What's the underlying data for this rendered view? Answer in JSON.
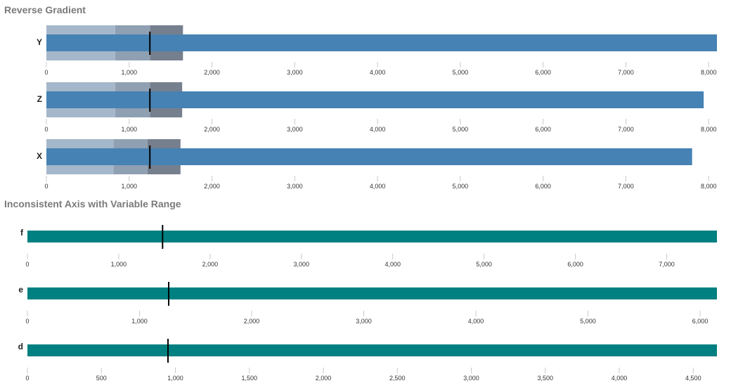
{
  "sections": [
    {
      "title": "Reverse Gradient"
    },
    {
      "title": "Inconsistent Axis with Variable Range"
    }
  ],
  "colors": {
    "blue_bar": "#4682b4",
    "teal_bar": "#008080",
    "range_light": "#a5b7ca",
    "range_mid": "#8fa0b2",
    "range_dark": "#757f8e",
    "marker": "#000000",
    "title": "#7a7a7a"
  },
  "chart_data": [
    {
      "type": "bullet",
      "title": "Reverse Gradient",
      "axis": {
        "min": 0,
        "max": 8100,
        "ticks": [
          0,
          1000,
          2000,
          3000,
          4000,
          5000,
          6000,
          7000,
          8000
        ],
        "tick_labels": [
          "0",
          "1,000",
          "2,000",
          "3,000",
          "4,000",
          "5,000",
          "6,000",
          "7,000",
          "8,000"
        ]
      },
      "items": [
        {
          "label": "Y",
          "value": 8100,
          "marker": 1250,
          "ranges": [
            830,
            1250,
            1650
          ]
        },
        {
          "label": "Z",
          "value": 7940,
          "marker": 1250,
          "ranges": [
            830,
            1250,
            1640
          ]
        },
        {
          "label": "X",
          "value": 7800,
          "marker": 1250,
          "ranges": [
            810,
            1220,
            1620
          ]
        }
      ]
    },
    {
      "type": "bullet",
      "title": "Inconsistent Axis with Variable Range",
      "items": [
        {
          "label": "f",
          "value": 7550,
          "marker": 1480,
          "axis": {
            "min": 0,
            "max": 7550,
            "ticks": [
              0,
              1000,
              2000,
              3000,
              4000,
              5000,
              6000,
              7000
            ],
            "tick_labels": [
              "0",
              "1,000",
              "2,000",
              "3,000",
              "4,000",
              "5,000",
              "6,000",
              "7,000"
            ]
          }
        },
        {
          "label": "e",
          "value": 6150,
          "marker": 1260,
          "axis": {
            "min": 0,
            "max": 6150,
            "ticks": [
              0,
              1000,
              2000,
              3000,
              4000,
              5000,
              6000
            ],
            "tick_labels": [
              "0",
              "1,000",
              "2,000",
              "3,000",
              "4,000",
              "5,000",
              "6,000"
            ]
          }
        },
        {
          "label": "d",
          "value": 4660,
          "marker": 950,
          "axis": {
            "min": 0,
            "max": 4660,
            "ticks": [
              0,
              500,
              1000,
              1500,
              2000,
              2500,
              3000,
              3500,
              4000,
              4500
            ],
            "tick_labels": [
              "0",
              "500",
              "1,000",
              "1,500",
              "2,000",
              "2,500",
              "3,000",
              "3,500",
              "4,000",
              "4,500"
            ]
          }
        }
      ]
    }
  ]
}
